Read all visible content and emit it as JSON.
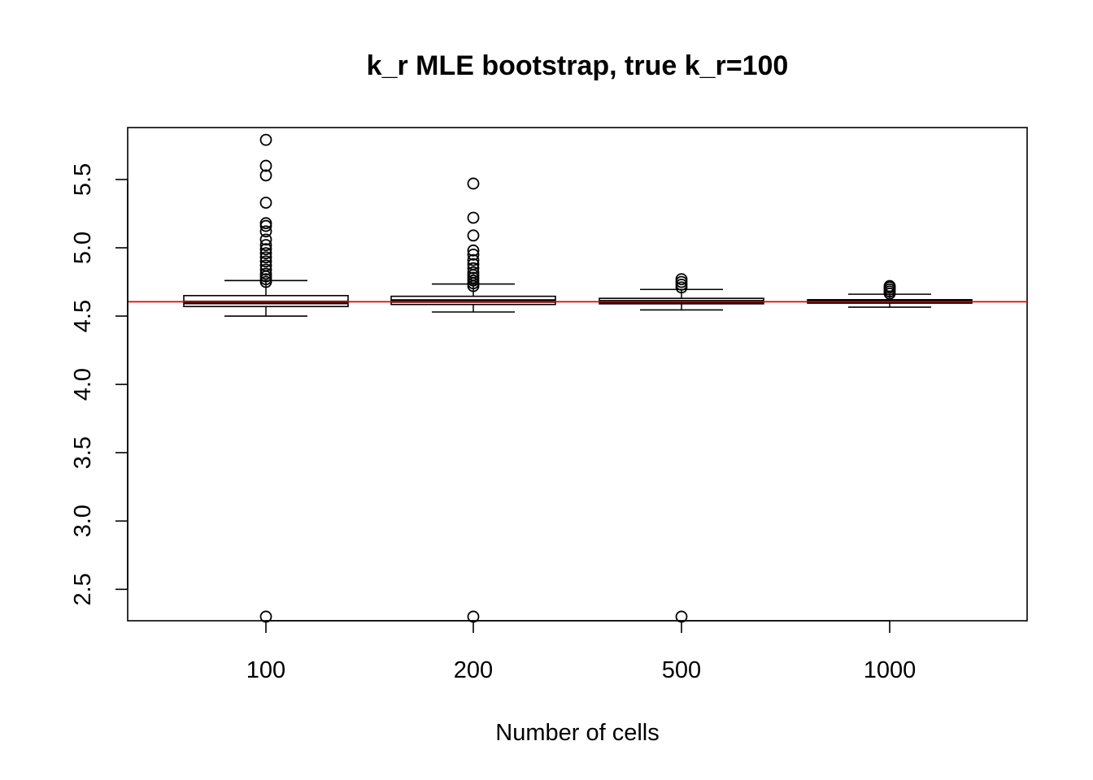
{
  "chart_data": {
    "type": "box",
    "title": "k_r MLE bootstrap, true k_r=100",
    "xlabel": "Number of cells",
    "ylabel": "",
    "categories": [
      "100",
      "200",
      "500",
      "1000"
    ],
    "yticks": [
      2.5,
      3.0,
      3.5,
      4.0,
      4.5,
      5.0,
      5.5
    ],
    "ytick_labels": [
      "2.5",
      "3.0",
      "3.5",
      "4.0",
      "4.5",
      "5.0",
      "5.5"
    ],
    "ylim": [
      2.27,
      5.88
    ],
    "reference_line": {
      "y": 4.605,
      "color": "#e00000"
    },
    "grid": false,
    "boxes": [
      {
        "category": "100",
        "whisker_low": 4.5,
        "q1": 4.57,
        "median": 4.6,
        "q3": 4.65,
        "whisker_high": 4.76,
        "outliers": [
          2.3,
          4.75,
          4.77,
          4.79,
          4.81,
          4.84,
          4.87,
          4.9,
          4.93,
          4.96,
          4.99,
          5.02,
          5.06,
          5.12,
          5.16,
          5.18,
          5.33,
          5.53,
          5.6,
          5.79
        ]
      },
      {
        "category": "200",
        "whisker_low": 4.53,
        "q1": 4.585,
        "median": 4.61,
        "q3": 4.645,
        "whisker_high": 4.735,
        "outliers": [
          2.3,
          4.72,
          4.74,
          4.76,
          4.78,
          4.8,
          4.82,
          4.85,
          4.88,
          4.91,
          4.95,
          4.98,
          5.09,
          5.22,
          5.47
        ]
      },
      {
        "category": "500",
        "whisker_low": 4.545,
        "q1": 4.59,
        "median": 4.605,
        "q3": 4.63,
        "whisker_high": 4.695,
        "outliers": [
          2.3,
          4.71,
          4.73,
          4.75,
          4.77
        ]
      },
      {
        "category": "1000",
        "whisker_low": 4.565,
        "q1": 4.595,
        "median": 4.605,
        "q3": 4.62,
        "whisker_high": 4.66,
        "outliers": [
          4.665,
          4.68,
          4.695,
          4.71,
          4.72
        ]
      }
    ],
    "colors": {
      "box": "#000000",
      "median": "#000000",
      "reference": "#e00000"
    }
  }
}
